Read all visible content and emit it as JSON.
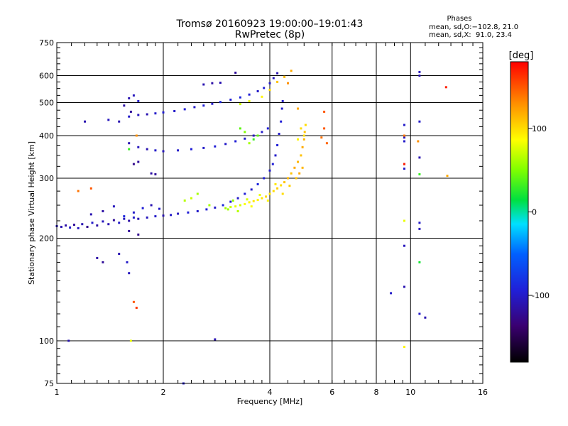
{
  "chart_data": {
    "type": "scatter",
    "title": "Tromsø 20160923 19:00:00–19:01:43",
    "subtitle": "RwPretec (8p)",
    "xlabel": "Frequency [MHz]",
    "ylabel": "Stationary phase Virtual Height [km]",
    "xscale": "log",
    "yscale": "log",
    "xlim": [
      1,
      16
    ],
    "ylim": [
      75,
      750
    ],
    "xticks": [
      1,
      2,
      4,
      6,
      8,
      10,
      16
    ],
    "yticks": [
      75,
      100,
      200,
      300,
      400,
      500,
      600,
      750
    ],
    "grid": true,
    "phases_box": {
      "heading": "Phases",
      "line_o": "mean, sd,O:−102.8, 21.0",
      "line_x": "mean, sd,X:  91.0, 23.4"
    },
    "colorbar": {
      "label": "[deg]",
      "range": [
        -180,
        180
      ],
      "ticks": [
        100,
        0,
        -100
      ]
    },
    "series": [
      {
        "color": "phase",
        "points": [
          [
            1.0,
            217,
            -105
          ],
          [
            1.03,
            216,
            -110
          ],
          [
            1.06,
            218,
            -115
          ],
          [
            1.09,
            215,
            -100
          ],
          [
            1.12,
            219,
            -120
          ],
          [
            1.15,
            214,
            -105
          ],
          [
            1.18,
            220,
            -110
          ],
          [
            1.22,
            216,
            -125
          ],
          [
            1.26,
            222,
            -100
          ],
          [
            1.3,
            218,
            -115
          ],
          [
            1.35,
            224,
            -105
          ],
          [
            1.4,
            220,
            -110
          ],
          [
            1.45,
            226,
            -120
          ],
          [
            1.5,
            222,
            -100
          ],
          [
            1.55,
            228,
            -105
          ],
          [
            1.6,
            225,
            -115
          ],
          [
            1.65,
            230,
            -100
          ],
          [
            1.7,
            228,
            -110
          ],
          [
            1.8,
            230,
            -105
          ],
          [
            1.9,
            232,
            -100
          ],
          [
            2.0,
            233,
            -110
          ],
          [
            2.1,
            234,
            -100
          ],
          [
            2.2,
            236,
            -105
          ],
          [
            2.35,
            238,
            -95
          ],
          [
            2.5,
            240,
            -100
          ],
          [
            2.65,
            243,
            -95
          ],
          [
            2.8,
            246,
            -100
          ],
          [
            2.95,
            250,
            -90
          ],
          [
            3.1,
            256,
            -95
          ],
          [
            3.25,
            262,
            -100
          ],
          [
            3.4,
            270,
            -95
          ],
          [
            3.55,
            278,
            -100
          ],
          [
            3.7,
            288,
            -90
          ],
          [
            3.85,
            300,
            -95
          ],
          [
            4.0,
            316,
            -100
          ],
          [
            4.08,
            330,
            -95
          ],
          [
            4.15,
            350,
            -100
          ],
          [
            4.2,
            375,
            -95
          ],
          [
            4.25,
            405,
            -100
          ],
          [
            4.3,
            440,
            -95
          ],
          [
            4.33,
            480,
            -100
          ],
          [
            4.35,
            505,
            -100
          ],
          [
            1.55,
            232,
            -90
          ],
          [
            1.65,
            238,
            -100
          ],
          [
            1.75,
            245,
            -95
          ],
          [
            1.85,
            250,
            -110
          ],
          [
            1.95,
            244,
            -100
          ],
          [
            1.45,
            248,
            -105
          ],
          [
            1.35,
            240,
            -115
          ],
          [
            1.25,
            235,
            -110
          ],
          [
            1.6,
            210,
            -120
          ],
          [
            1.7,
            205,
            -125
          ],
          [
            1.4,
            445,
            -105
          ],
          [
            1.5,
            440,
            -110
          ],
          [
            1.6,
            455,
            -100
          ],
          [
            1.7,
            460,
            -105
          ],
          [
            1.8,
            462,
            -110
          ],
          [
            1.9,
            465,
            -100
          ],
          [
            2.0,
            468,
            -95
          ],
          [
            2.15,
            472,
            -100
          ],
          [
            2.3,
            478,
            -95
          ],
          [
            2.45,
            485,
            -100
          ],
          [
            2.6,
            490,
            -95
          ],
          [
            2.75,
            496,
            -100
          ],
          [
            2.9,
            502,
            -90
          ],
          [
            3.1,
            510,
            -95
          ],
          [
            3.3,
            518,
            -90
          ],
          [
            3.5,
            528,
            -95
          ],
          [
            3.7,
            540,
            -100
          ],
          [
            3.85,
            552,
            -95
          ],
          [
            4.0,
            570,
            -100
          ],
          [
            4.1,
            590,
            -105
          ],
          [
            4.2,
            610,
            -110
          ],
          [
            1.6,
            515,
            -110
          ],
          [
            1.65,
            525,
            -105
          ],
          [
            1.7,
            505,
            -100
          ],
          [
            1.55,
            490,
            -115
          ],
          [
            1.62,
            470,
            -120
          ],
          [
            1.6,
            380,
            -110
          ],
          [
            1.7,
            370,
            -105
          ],
          [
            1.8,
            365,
            -110
          ],
          [
            1.9,
            362,
            -100
          ],
          [
            2.0,
            360,
            -105
          ],
          [
            2.2,
            362,
            -100
          ],
          [
            2.4,
            365,
            -95
          ],
          [
            2.6,
            368,
            -100
          ],
          [
            2.8,
            372,
            -95
          ],
          [
            3.0,
            378,
            -100
          ],
          [
            3.2,
            385,
            -95
          ],
          [
            3.4,
            392,
            -100
          ],
          [
            3.6,
            400,
            -105
          ],
          [
            3.8,
            410,
            -100
          ],
          [
            3.95,
            420,
            -95
          ],
          [
            2.6,
            565,
            -110
          ],
          [
            2.75,
            570,
            -115
          ],
          [
            2.9,
            572,
            -110
          ],
          [
            3.2,
            612,
            -120
          ],
          [
            1.2,
            440,
            -110
          ],
          [
            1.7,
            335,
            -120
          ],
          [
            1.65,
            330,
            -125
          ],
          [
            1.85,
            310,
            -115
          ],
          [
            1.9,
            308,
            -120
          ],
          [
            1.08,
            100,
            -110
          ],
          [
            1.3,
            175,
            -115
          ],
          [
            1.35,
            170,
            -120
          ],
          [
            1.5,
            180,
            -110
          ],
          [
            1.58,
            170,
            -100
          ],
          [
            1.6,
            158,
            -105
          ],
          [
            2.28,
            75,
            -100
          ],
          [
            2.8,
            101,
            -110
          ],
          [
            8.8,
            138,
            -100
          ],
          [
            9.6,
            144,
            -110
          ],
          [
            9.6,
            190,
            -105
          ],
          [
            9.6,
            320,
            -100
          ],
          [
            9.6,
            330,
            -110
          ],
          [
            9.6,
            385,
            -100
          ],
          [
            9.6,
            395,
            -105
          ],
          [
            9.6,
            430,
            -100
          ],
          [
            10.6,
            222,
            -100
          ],
          [
            10.6,
            213,
            -105
          ],
          [
            10.6,
            345,
            -110
          ],
          [
            10.6,
            440,
            -100
          ],
          [
            10.6,
            615,
            -105
          ],
          [
            10.6,
            600,
            -110
          ],
          [
            10.6,
            120,
            -100
          ],
          [
            11.0,
            117,
            -110
          ]
        ]
      },
      {
        "color": "phase",
        "points": [
          [
            3.0,
            245,
            60
          ],
          [
            3.1,
            247,
            70
          ],
          [
            3.2,
            248,
            80
          ],
          [
            3.3,
            250,
            75
          ],
          [
            3.4,
            252,
            85
          ],
          [
            3.5,
            255,
            90
          ],
          [
            3.6,
            257,
            95
          ],
          [
            3.7,
            259,
            90
          ],
          [
            3.8,
            262,
            95
          ],
          [
            3.9,
            265,
            100
          ],
          [
            4.0,
            270,
            95
          ],
          [
            4.1,
            275,
            100
          ],
          [
            4.2,
            280,
            105
          ],
          [
            4.3,
            286,
            100
          ],
          [
            4.4,
            292,
            110
          ],
          [
            4.5,
            300,
            115
          ],
          [
            4.6,
            310,
            110
          ],
          [
            4.7,
            322,
            120
          ],
          [
            4.8,
            335,
            115
          ],
          [
            4.9,
            350,
            110
          ],
          [
            4.95,
            370,
            120
          ],
          [
            5.0,
            390,
            115
          ],
          [
            5.02,
            410,
            110
          ],
          [
            5.05,
            430,
            100
          ],
          [
            3.05,
            243,
            60
          ],
          [
            3.15,
            258,
            55
          ],
          [
            3.25,
            240,
            65
          ],
          [
            3.45,
            260,
            75
          ],
          [
            3.55,
            248,
            85
          ],
          [
            3.75,
            268,
            80
          ],
          [
            3.95,
            258,
            90
          ],
          [
            4.15,
            288,
            95
          ],
          [
            4.35,
            270,
            100
          ],
          [
            4.55,
            285,
            105
          ],
          [
            4.75,
            300,
            110
          ],
          [
            4.85,
            310,
            120
          ],
          [
            4.95,
            322,
            115
          ],
          [
            2.4,
            262,
            70
          ],
          [
            2.5,
            270,
            60
          ],
          [
            2.3,
            258,
            65
          ],
          [
            2.7,
            250,
            60
          ],
          [
            3.3,
            495,
            70
          ],
          [
            3.5,
            505,
            80
          ],
          [
            3.8,
            520,
            90
          ],
          [
            4.0,
            545,
            100
          ],
          [
            4.2,
            575,
            110
          ],
          [
            4.4,
            595,
            115
          ],
          [
            4.6,
            620,
            120
          ],
          [
            3.3,
            420,
            40
          ],
          [
            3.4,
            410,
            50
          ],
          [
            3.6,
            390,
            30
          ],
          [
            3.7,
            400,
            40
          ],
          [
            3.5,
            380,
            60
          ],
          [
            4.8,
            390,
            90
          ],
          [
            5.0,
            400,
            100
          ],
          [
            4.9,
            420,
            100
          ],
          [
            5.6,
            395,
            140
          ],
          [
            5.7,
            420,
            150
          ],
          [
            5.8,
            380,
            145
          ],
          [
            5.7,
            470,
            150
          ],
          [
            4.5,
            570,
            130
          ],
          [
            4.8,
            480,
            120
          ],
          [
            9.6,
            330,
            170
          ],
          [
            9.6,
            225,
            80
          ],
          [
            9.6,
            400,
            140
          ],
          [
            9.6,
            96,
            90
          ],
          [
            10.5,
            385,
            130
          ],
          [
            10.6,
            170,
            20
          ],
          [
            10.6,
            308,
            30
          ],
          [
            12.6,
            555,
            170
          ],
          [
            12.7,
            305,
            120
          ],
          [
            1.65,
            130,
            150
          ],
          [
            1.68,
            125,
            160
          ],
          [
            1.6,
            365,
            30
          ],
          [
            1.62,
            100,
            80
          ],
          [
            1.68,
            400,
            130
          ],
          [
            1.15,
            275,
            140
          ],
          [
            1.25,
            280,
            150
          ]
        ]
      }
    ]
  }
}
